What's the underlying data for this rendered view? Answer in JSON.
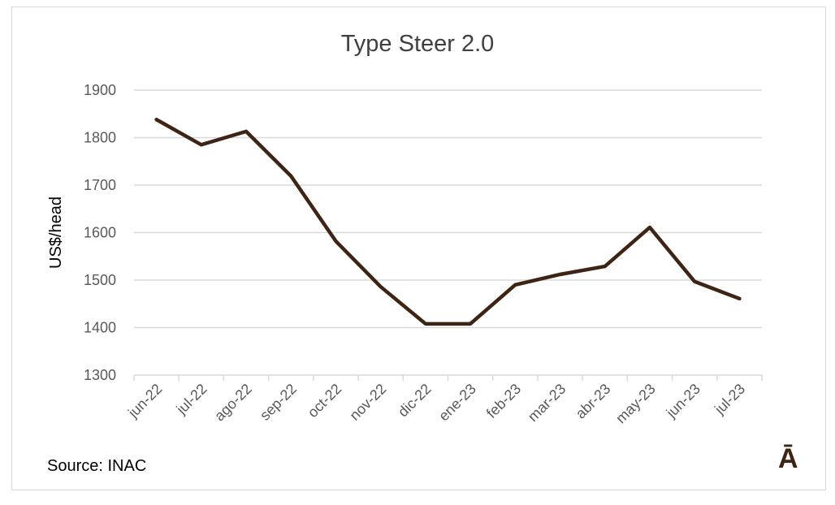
{
  "chart_data": {
    "type": "line",
    "title": "Type Steer 2.0",
    "xlabel": "",
    "ylabel": "US$/head",
    "ylim": [
      1300,
      1900
    ],
    "yticks": [
      1300,
      1400,
      1500,
      1600,
      1700,
      1800,
      1900
    ],
    "grid": true,
    "categories": [
      "jun-22",
      "jul-22",
      "ago-22",
      "sep-22",
      "oct-22",
      "nov-22",
      "dic-22",
      "ene-23",
      "feb-23",
      "mar-23",
      "abr-23",
      "may-23",
      "jun-23",
      "jul-23"
    ],
    "series": [
      {
        "values": [
          1838,
          1785,
          1813,
          1719,
          1582,
          1486,
          1408,
          1408,
          1490,
          1512,
          1529,
          1611,
          1497,
          1461
        ],
        "color": "#3d2414"
      }
    ],
    "source": "Source: INAC",
    "logo": "Ā"
  }
}
